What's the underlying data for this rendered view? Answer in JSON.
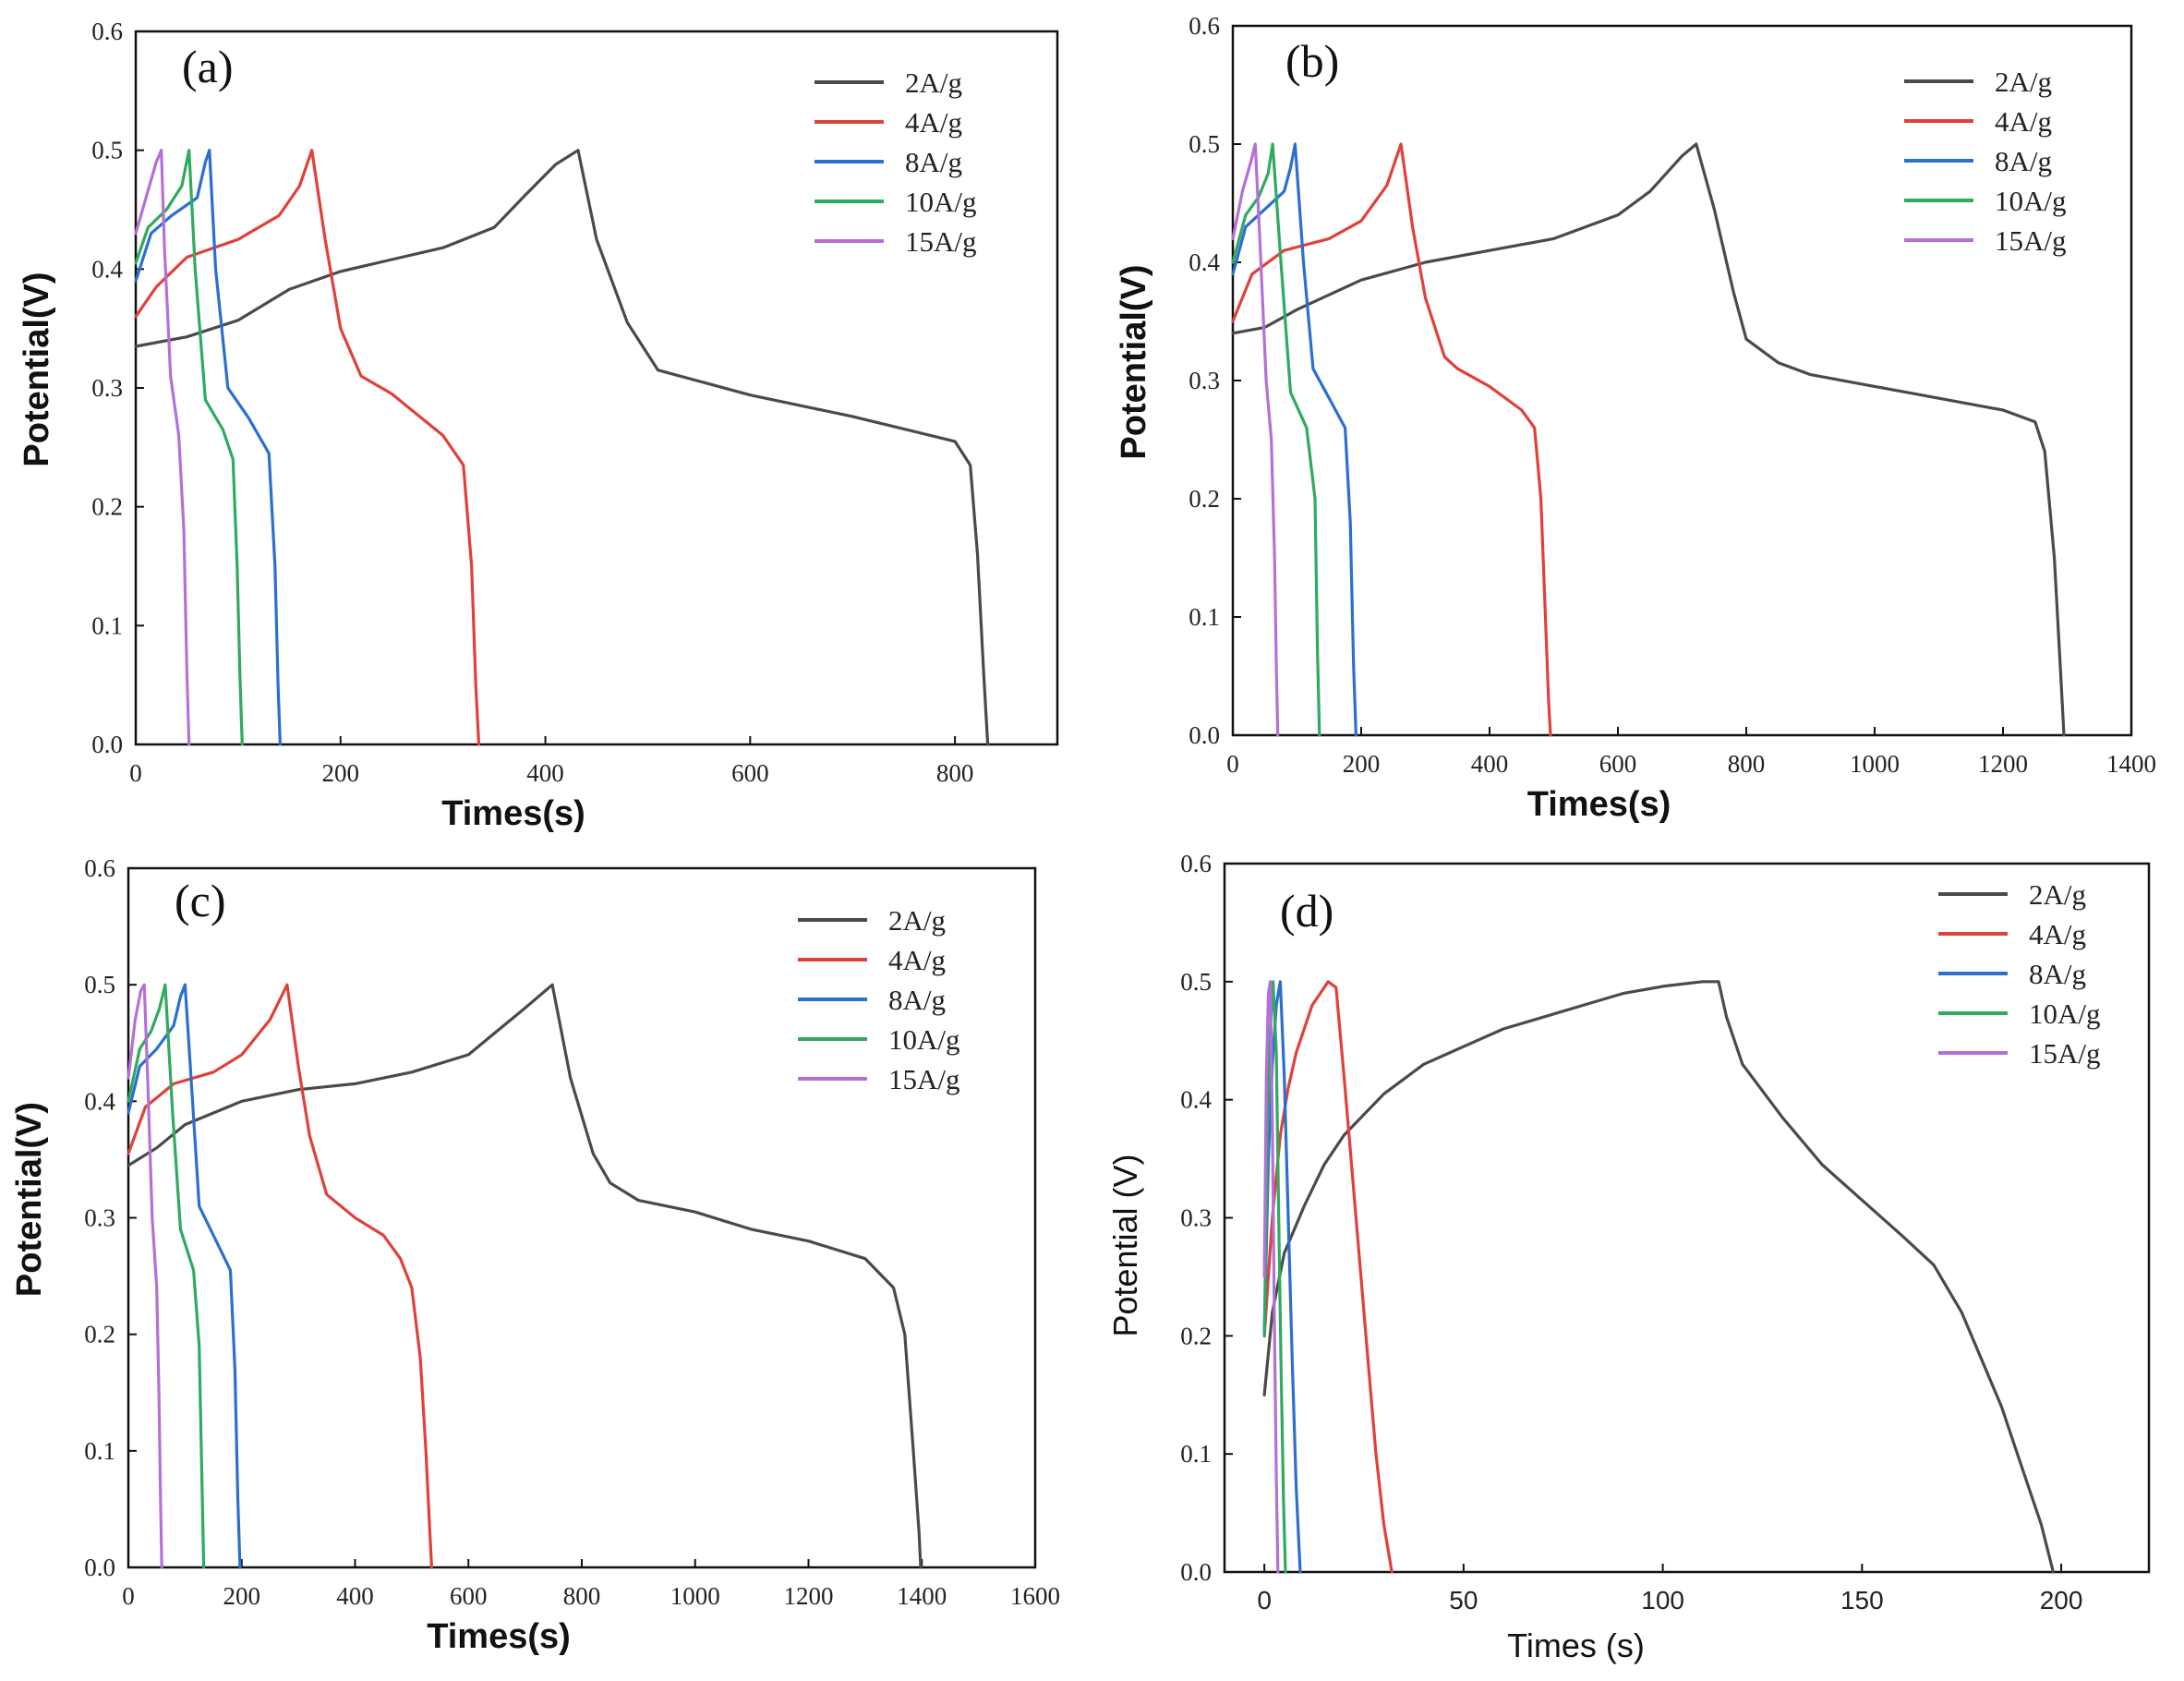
{
  "chart_data": [
    {
      "type": "line",
      "panel": "(a)",
      "title": "(a)",
      "xlabel": "Times(s)",
      "ylabel": "Potential(V)",
      "xlim": [
        0,
        900
      ],
      "ylim": [
        0,
        0.6
      ],
      "xticks": [
        0,
        200,
        400,
        600,
        800
      ],
      "yticks": [
        0.0,
        0.1,
        0.2,
        0.3,
        0.4,
        0.5,
        0.6
      ],
      "legend_position": "top-right",
      "series": [
        {
          "name": "2A/g",
          "color": "#4a4a4a",
          "x": [
            0,
            50,
            100,
            150,
            200,
            250,
            300,
            350,
            380,
            410,
            432,
            450,
            480,
            510,
            600,
            700,
            800,
            815,
            822,
            828,
            832
          ],
          "y": [
            0.335,
            0.343,
            0.357,
            0.383,
            0.398,
            0.408,
            0.418,
            0.435,
            0.462,
            0.488,
            0.5,
            0.425,
            0.355,
            0.315,
            0.294,
            0.276,
            0.255,
            0.235,
            0.16,
            0.06,
            0.0
          ]
        },
        {
          "name": "4A/g",
          "color": "#e0403a",
          "x": [
            0,
            20,
            50,
            100,
            140,
            160,
            172,
            185,
            200,
            220,
            250,
            300,
            320,
            328,
            332,
            335
          ],
          "y": [
            0.36,
            0.385,
            0.41,
            0.425,
            0.445,
            0.47,
            0.5,
            0.425,
            0.35,
            0.31,
            0.295,
            0.26,
            0.235,
            0.15,
            0.05,
            0.0
          ]
        },
        {
          "name": "8A/g",
          "color": "#2b6fd0",
          "x": [
            0,
            15,
            35,
            60,
            68,
            72,
            78,
            90,
            110,
            130,
            136,
            139,
            141
          ],
          "y": [
            0.39,
            0.43,
            0.445,
            0.46,
            0.49,
            0.5,
            0.4,
            0.3,
            0.275,
            0.245,
            0.15,
            0.05,
            0.0
          ]
        },
        {
          "name": "10A/g",
          "color": "#2faa5e",
          "x": [
            0,
            12,
            30,
            45,
            52,
            58,
            68,
            85,
            95,
            99,
            102,
            104
          ],
          "y": [
            0.405,
            0.435,
            0.45,
            0.47,
            0.5,
            0.4,
            0.29,
            0.265,
            0.24,
            0.15,
            0.05,
            0.0
          ]
        },
        {
          "name": "15A/g",
          "color": "#b56fd8",
          "x": [
            0,
            10,
            20,
            25,
            28,
            34,
            42,
            47,
            50,
            52
          ],
          "y": [
            0.43,
            0.46,
            0.49,
            0.5,
            0.42,
            0.31,
            0.26,
            0.18,
            0.06,
            0.0
          ]
        }
      ]
    },
    {
      "type": "line",
      "panel": "(b)",
      "title": "(b)",
      "xlabel": "Times(s)",
      "ylabel": "Potential(V)",
      "xlim": [
        0,
        1400
      ],
      "ylim": [
        0,
        0.6
      ],
      "xticks": [
        0,
        200,
        400,
        600,
        800,
        1000,
        1200,
        1400
      ],
      "yticks": [
        0.0,
        0.1,
        0.2,
        0.3,
        0.4,
        0.5,
        0.6
      ],
      "legend_position": "top-right",
      "series": [
        {
          "name": "2A/g",
          "color": "#4a4a4a",
          "x": [
            0,
            50,
            100,
            200,
            300,
            400,
            500,
            600,
            650,
            700,
            722,
            750,
            780,
            800,
            850,
            900,
            1000,
            1100,
            1200,
            1250,
            1265,
            1280,
            1290,
            1295
          ],
          "y": [
            0.34,
            0.345,
            0.36,
            0.385,
            0.4,
            0.41,
            0.42,
            0.44,
            0.46,
            0.49,
            0.5,
            0.445,
            0.375,
            0.335,
            0.315,
            0.305,
            0.295,
            0.285,
            0.275,
            0.265,
            0.24,
            0.15,
            0.05,
            0.0
          ]
        },
        {
          "name": "4A/g",
          "color": "#e0403a",
          "x": [
            0,
            30,
            80,
            150,
            200,
            240,
            262,
            280,
            300,
            330,
            350,
            400,
            450,
            470,
            480,
            487,
            492,
            495
          ],
          "y": [
            0.35,
            0.39,
            0.41,
            0.42,
            0.435,
            0.465,
            0.5,
            0.43,
            0.37,
            0.32,
            0.31,
            0.295,
            0.275,
            0.26,
            0.2,
            0.1,
            0.03,
            0.0
          ]
        },
        {
          "name": "8A/g",
          "color": "#2b6fd0",
          "x": [
            0,
            20,
            50,
            80,
            90,
            97,
            110,
            125,
            150,
            175,
            183,
            188,
            192
          ],
          "y": [
            0.39,
            0.43,
            0.445,
            0.46,
            0.48,
            0.5,
            0.4,
            0.31,
            0.285,
            0.26,
            0.18,
            0.06,
            0.0
          ]
        },
        {
          "name": "10A/g",
          "color": "#2faa5e",
          "x": [
            0,
            20,
            40,
            55,
            62,
            75,
            90,
            115,
            128,
            132,
            135
          ],
          "y": [
            0.4,
            0.44,
            0.455,
            0.475,
            0.5,
            0.4,
            0.29,
            0.26,
            0.2,
            0.07,
            0.0
          ]
        },
        {
          "name": "15A/g",
          "color": "#b56fd8",
          "x": [
            0,
            15,
            28,
            35,
            42,
            52,
            60,
            65,
            68,
            70
          ],
          "y": [
            0.42,
            0.46,
            0.485,
            0.5,
            0.42,
            0.3,
            0.25,
            0.15,
            0.05,
            0.0
          ]
        }
      ]
    },
    {
      "type": "line",
      "panel": "(c)",
      "title": "(c)",
      "xlabel": "Times(s)",
      "ylabel": "Potential(V)",
      "xlim": [
        0,
        1600
      ],
      "ylim": [
        0,
        0.6
      ],
      "xticks": [
        0,
        200,
        400,
        600,
        800,
        1000,
        1200,
        1400,
        1600
      ],
      "yticks": [
        0.0,
        0.1,
        0.2,
        0.3,
        0.4,
        0.5,
        0.6
      ],
      "legend_position": "top-right",
      "series": [
        {
          "name": "2A/g",
          "color": "#4a4a4a",
          "x": [
            0,
            50,
            100,
            200,
            300,
            400,
            500,
            600,
            650,
            700,
            748,
            780,
            820,
            850,
            900,
            1000,
            1100,
            1200,
            1300,
            1350,
            1370,
            1385,
            1395,
            1398
          ],
          "y": [
            0.345,
            0.36,
            0.38,
            0.4,
            0.41,
            0.415,
            0.425,
            0.44,
            0.46,
            0.48,
            0.5,
            0.42,
            0.355,
            0.33,
            0.315,
            0.305,
            0.29,
            0.28,
            0.265,
            0.24,
            0.2,
            0.1,
            0.03,
            0.0
          ]
        },
        {
          "name": "4A/g",
          "color": "#e0403a",
          "x": [
            0,
            30,
            80,
            150,
            200,
            250,
            280,
            300,
            320,
            350,
            400,
            450,
            480,
            500,
            515,
            525,
            532,
            535
          ],
          "y": [
            0.355,
            0.395,
            0.415,
            0.425,
            0.44,
            0.47,
            0.5,
            0.43,
            0.37,
            0.32,
            0.3,
            0.285,
            0.265,
            0.24,
            0.18,
            0.1,
            0.03,
            0.0
          ]
        },
        {
          "name": "8A/g",
          "color": "#2b6fd0",
          "x": [
            0,
            20,
            50,
            80,
            92,
            100,
            112,
            125,
            150,
            180,
            188,
            193,
            197
          ],
          "y": [
            0.39,
            0.43,
            0.445,
            0.465,
            0.49,
            0.5,
            0.41,
            0.31,
            0.285,
            0.255,
            0.17,
            0.06,
            0.0
          ]
        },
        {
          "name": "10A/g",
          "color": "#2faa5e",
          "x": [
            0,
            20,
            40,
            55,
            65,
            78,
            92,
            115,
            125,
            130,
            133
          ],
          "y": [
            0.4,
            0.445,
            0.46,
            0.48,
            0.5,
            0.39,
            0.29,
            0.255,
            0.19,
            0.07,
            0.0
          ]
        },
        {
          "name": "15A/g",
          "color": "#b56fd8",
          "x": [
            0,
            12,
            22,
            28,
            34,
            42,
            50,
            54,
            57,
            59
          ],
          "y": [
            0.42,
            0.47,
            0.495,
            0.5,
            0.42,
            0.3,
            0.24,
            0.15,
            0.05,
            0.0
          ]
        }
      ]
    },
    {
      "type": "line",
      "panel": "(d)",
      "title": "(d)",
      "xlabel": "Times (s)",
      "ylabel": "Potential (V)",
      "xlim": [
        -10,
        222
      ],
      "ylim": [
        0,
        0.6
      ],
      "xticks": [
        0,
        50,
        100,
        150,
        200
      ],
      "yticks": [
        0.0,
        0.1,
        0.2,
        0.3,
        0.4,
        0.5,
        0.6
      ],
      "legend_position": "top-right",
      "series": [
        {
          "name": "2A/g",
          "color": "#4a4a4a",
          "x": [
            0,
            2,
            5,
            10,
            15,
            20,
            30,
            40,
            50,
            60,
            70,
            80,
            90,
            100,
            110,
            114,
            116,
            120,
            130,
            140,
            150,
            160,
            168,
            175,
            180,
            185,
            190,
            195,
            198
          ],
          "y": [
            0.15,
            0.22,
            0.27,
            0.31,
            0.345,
            0.37,
            0.405,
            0.43,
            0.445,
            0.46,
            0.47,
            0.48,
            0.49,
            0.496,
            0.5,
            0.5,
            0.47,
            0.43,
            0.385,
            0.345,
            0.315,
            0.285,
            0.26,
            0.22,
            0.18,
            0.14,
            0.09,
            0.04,
            0.0
          ]
        },
        {
          "name": "4A/g",
          "color": "#e0403a",
          "x": [
            0,
            2,
            4,
            6,
            8,
            10,
            12,
            14,
            16,
            18,
            20,
            22,
            24,
            26,
            28,
            30,
            32
          ],
          "y": [
            0.2,
            0.3,
            0.37,
            0.41,
            0.44,
            0.46,
            0.48,
            0.49,
            0.5,
            0.495,
            0.42,
            0.34,
            0.26,
            0.18,
            0.1,
            0.04,
            0.0
          ]
        },
        {
          "name": "8A/g",
          "color": "#2b6fd0",
          "x": [
            0,
            1,
            2,
            3,
            4,
            5,
            6,
            7,
            8,
            9
          ],
          "y": [
            0.2,
            0.35,
            0.43,
            0.48,
            0.5,
            0.42,
            0.3,
            0.18,
            0.07,
            0.0
          ]
        },
        {
          "name": "10A/g",
          "color": "#2faa5e",
          "x": [
            0,
            0.8,
            1.5,
            2.2,
            3,
            3.6,
            4.2,
            4.8,
            5.3
          ],
          "y": [
            0.2,
            0.38,
            0.46,
            0.5,
            0.44,
            0.3,
            0.17,
            0.06,
            0.0
          ]
        },
        {
          "name": "15A/g",
          "color": "#b56fd8",
          "x": [
            0,
            0.5,
            1.0,
            1.5,
            2.0,
            2.5,
            3.0,
            3.4
          ],
          "y": [
            0.25,
            0.42,
            0.49,
            0.5,
            0.38,
            0.22,
            0.08,
            0.0
          ]
        }
      ]
    }
  ]
}
